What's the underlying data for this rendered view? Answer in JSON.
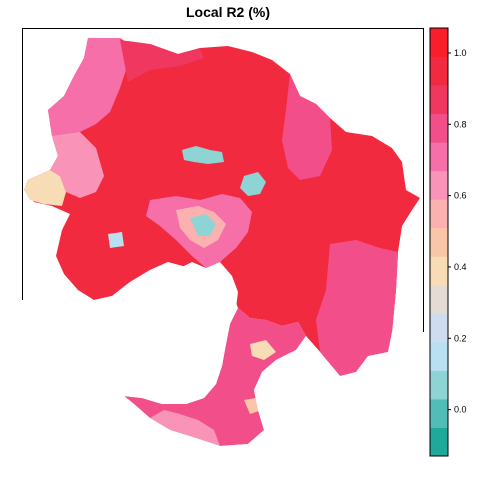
{
  "title": "Local R2 (%)",
  "legend": {
    "tick_labels": [
      "0.0",
      "0.2",
      "0.4",
      "0.6",
      "0.8",
      "1.0"
    ],
    "tick_values": [
      0.0,
      0.2,
      0.4,
      0.6,
      0.8,
      1.0
    ],
    "range": [
      -0.13,
      1.07
    ],
    "colors": [
      "#1fa99a",
      "#52bdb6",
      "#8fd4d4",
      "#b8e0f0",
      "#cfdcf0",
      "#e4dcd4",
      "#f7dcb6",
      "#f9c7a8",
      "#fbb1b0",
      "#fa93b8",
      "#f66fa8",
      "#f24f8a",
      "#f0375f",
      "#f22a40",
      "#fa1e2a"
    ]
  },
  "map": {
    "colors": {
      "high": "#fa1e2a",
      "mid_high": "#f2375f",
      "pink": "#f66fa8",
      "light_pink": "#fbb1b0",
      "peach": "#f7dcb6",
      "light_blue": "#cfdcf0",
      "teal": "#8fd4d4"
    }
  }
}
